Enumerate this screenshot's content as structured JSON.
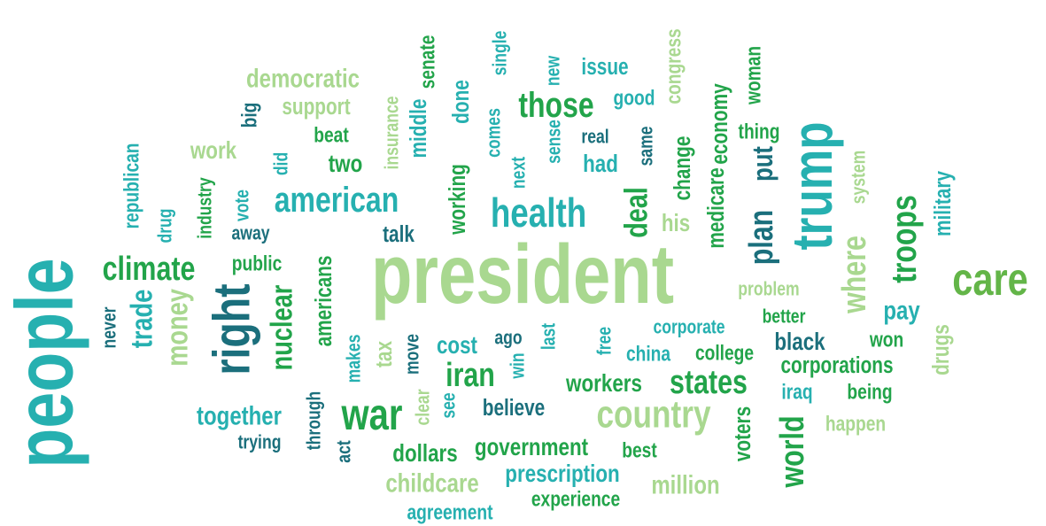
{
  "words": [
    "democratic",
    "support",
    "big",
    "beat",
    "work",
    "two",
    "did",
    "insurance",
    "middle",
    "senate",
    "done",
    "single",
    "new",
    "issue",
    "congress",
    "woman",
    "good",
    "those",
    "comes",
    "sense",
    "real",
    "same",
    "economy",
    "thing",
    "trump",
    "republican",
    "industry",
    "drug",
    "vote",
    "american",
    "working",
    "next",
    "health",
    "had",
    "change",
    "deal",
    "medicare",
    "plan",
    "put",
    "system",
    "military",
    "troops",
    "his",
    "away",
    "talk",
    "people",
    "climate",
    "public",
    "president",
    "where",
    "care",
    "americans",
    "right",
    "money",
    "trade",
    "never",
    "nuclear",
    "problem",
    "pay",
    "better",
    "corporate",
    "makes",
    "tax",
    "move",
    "cost",
    "ago",
    "last",
    "free",
    "black",
    "won",
    "drugs",
    "china",
    "college",
    "iran",
    "win",
    "corporations",
    "states",
    "workers",
    "iraq",
    "being",
    "clear",
    "see",
    "believe",
    "country",
    "together",
    "war",
    "through",
    "happen",
    "world",
    "voters",
    "trying",
    "act",
    "dollars",
    "government",
    "best",
    "prescription",
    "childcare",
    "million",
    "experience",
    "agreement"
  ]
}
